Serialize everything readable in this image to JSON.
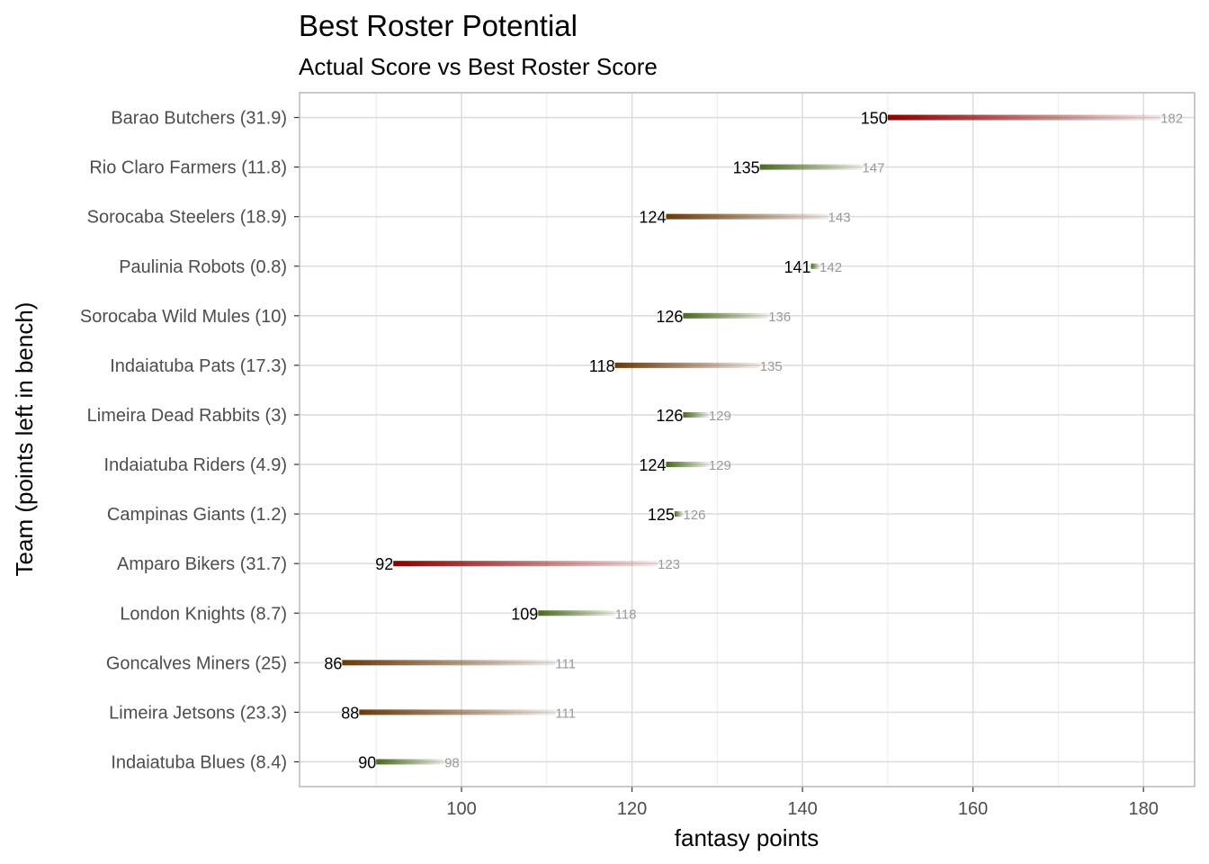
{
  "chart_data": {
    "type": "bar",
    "title": "Best Roster Potential",
    "subtitle": "Actual Score vs Best Roster Score",
    "xlabel": "fantasy points",
    "ylabel": "Team (points left in bench)",
    "xlim": [
      81,
      186
    ],
    "x_ticks": [
      100,
      120,
      140,
      160,
      180
    ],
    "grid": true,
    "legend": "none",
    "colors": {
      "high_bench": "#8b0000",
      "mid_bench": "#6b3a0a",
      "low_bench": "#4a6b1f",
      "best_label": "#999999",
      "grid": "#ebebeb",
      "panel_border": "#b3b3b3"
    },
    "categories": [
      "Barao Butchers (31.9)",
      "Rio Claro Farmers (11.8)",
      "Sorocaba Steelers (18.9)",
      "Paulinia Robots (0.8)",
      "Sorocaba Wild Mules (10)",
      "Indaiatuba Pats (17.3)",
      "Limeira Dead Rabbits (3)",
      "Indaiatuba Riders (4.9)",
      "Campinas Giants (1.2)",
      "Amparo Bikers (31.7)",
      "London Knights (8.7)",
      "Goncalves Miners (25)",
      "Limeira Jetsons (23.3)",
      "Indaiatuba Blues (8.4)"
    ],
    "series": [
      {
        "name": "actual",
        "values": [
          150,
          135,
          124,
          141,
          126,
          118,
          126,
          124,
          125,
          92,
          109,
          86,
          88,
          90
        ]
      },
      {
        "name": "best",
        "values": [
          182,
          147,
          143,
          142,
          136,
          135,
          129,
          129,
          126,
          123,
          118,
          111,
          111,
          98
        ]
      }
    ],
    "bench": [
      31.9,
      11.8,
      18.9,
      0.8,
      10,
      17.3,
      3,
      4.9,
      1.2,
      31.7,
      8.7,
      25,
      23.3,
      8.4
    ]
  }
}
